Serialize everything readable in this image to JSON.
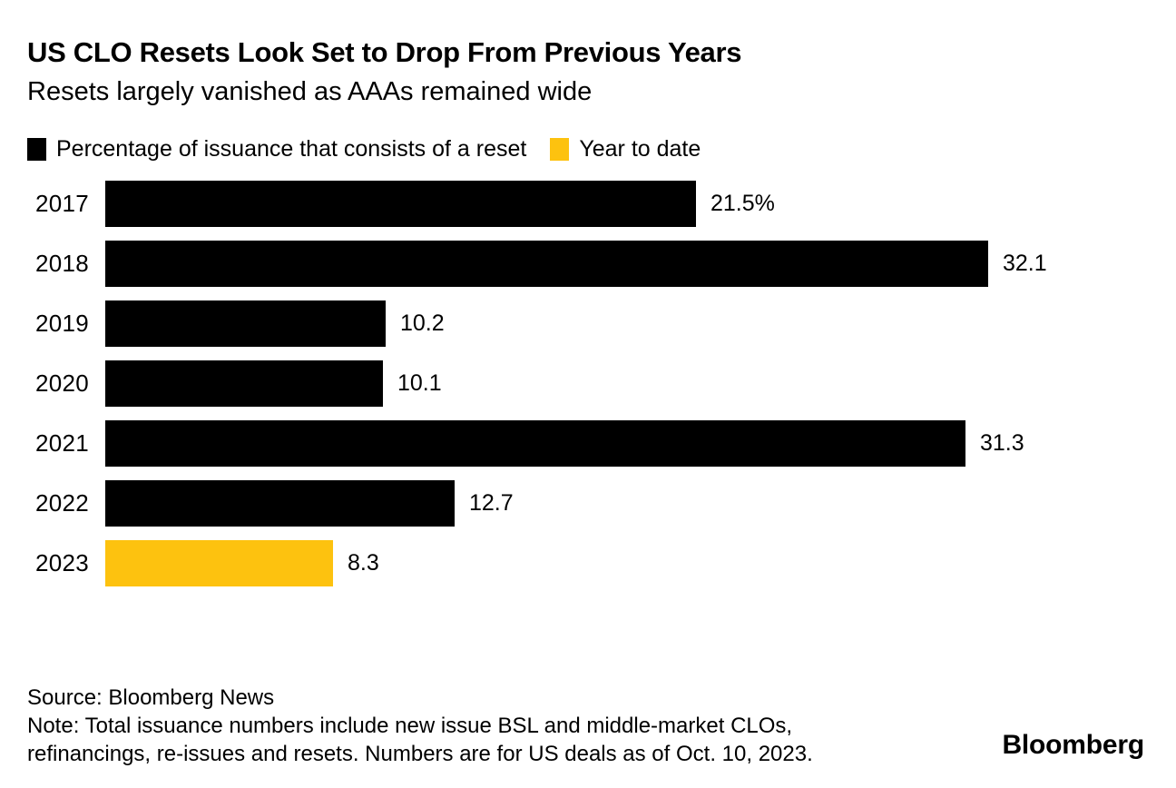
{
  "header": {
    "title": "US CLO Resets Look Set to Drop From Previous Years",
    "subtitle": "Resets largely vanished as AAAs remained wide"
  },
  "legend": {
    "items": [
      {
        "label": "Percentage of issuance that consists of a reset",
        "color": "#000000"
      },
      {
        "label": "Year to date",
        "color": "#FDC20F"
      }
    ]
  },
  "chart_data": {
    "type": "bar",
    "orientation": "horizontal",
    "title": "US CLO Resets Look Set to Drop From Previous Years",
    "subtitle": "Resets largely vanished as AAAs remained wide",
    "categories": [
      "2017",
      "2018",
      "2019",
      "2020",
      "2021",
      "2022",
      "2023"
    ],
    "values": [
      21.5,
      32.1,
      10.2,
      10.1,
      31.3,
      12.7,
      8.3
    ],
    "value_labels": [
      "21.5%",
      "32.1",
      "10.2",
      "10.1",
      "31.3",
      "12.7",
      "8.3"
    ],
    "bar_colors": [
      "#000000",
      "#000000",
      "#000000",
      "#000000",
      "#000000",
      "#000000",
      "#FDC20F"
    ],
    "series_names": [
      "Percentage of issuance that consists of a reset",
      "Year to date"
    ],
    "xlabel": "",
    "ylabel": "",
    "xlim": [
      0,
      33
    ],
    "grid": false,
    "legend_position": "top",
    "value_labels_position": "end-of-bar"
  },
  "footer": {
    "source": "Source: Bloomberg News",
    "note_line1": "Note: Total issuance numbers include new issue BSL and middle-market CLOs,",
    "note_line2": "refinancings, re-issues and resets. Numbers are for US deals as of Oct. 10, 2023.",
    "logo": "Bloomberg"
  },
  "colors": {
    "background": "#FFFFFF",
    "bar_default": "#000000",
    "bar_highlight": "#FDC20F",
    "text": "#000000"
  }
}
